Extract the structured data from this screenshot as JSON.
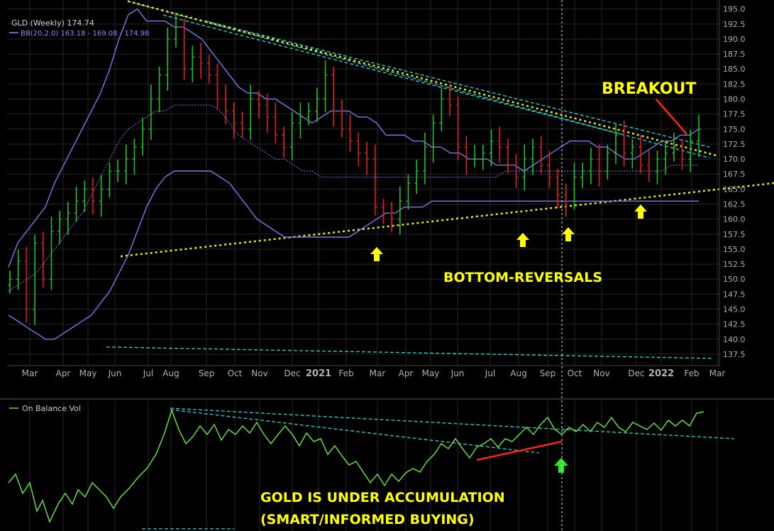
{
  "colors": {
    "background": "#000000",
    "grid": "#262626",
    "axis_text": "#b0b0b0",
    "up_bar": "#22c02a",
    "down_bar": "#e02020",
    "bollinger": "#7a7ae8",
    "bollinger_mid": "#6a6ad0",
    "trendline_cyan": "#2ad3d3",
    "trendline_yellow": "#e8e820",
    "annotation_yellow": "#ffff00",
    "obv_line": "#66dd44",
    "red_arrow": "#ff2020",
    "green_arrow": "#22ee22",
    "legend_gld": "#cfcfcf",
    "legend_bb": "#8a8aff",
    "legend_obv": "#cfcfcf"
  },
  "chart_data": [
    {
      "type": "ohlc",
      "legend": [
        "GLD (Weekly) 174.74",
        "BB(20,2.0) 163.18 - 169.08 - 174.98"
      ],
      "yaxis_ticks": [
        137.5,
        140.0,
        142.5,
        145.0,
        147.5,
        150.0,
        152.5,
        155.0,
        157.5,
        160.0,
        162.5,
        165.0,
        167.5,
        170.0,
        172.5,
        175.0,
        177.5,
        180.0,
        182.5,
        185.0,
        187.5,
        190.0,
        192.5,
        195.0
      ],
      "yaxis_tick_labels": [
        "137.5",
        "140.0",
        "142.5",
        "145.0",
        "147.5",
        "150.0",
        "152.5",
        "155.0",
        "157.5",
        "160.0",
        "162.5",
        "165.0",
        "167.5",
        "170.0",
        "172.5",
        "175.0",
        "177.5",
        "180.0",
        "182.5",
        "185.0",
        "187.5",
        "190.0",
        "192.5",
        "195.0"
      ],
      "ylim": [
        135.6,
        196.5
      ],
      "xaxis_labels": [
        "Mar",
        "Apr",
        "May",
        "Jun",
        "Jul",
        "Aug",
        "Sep",
        "Oct",
        "Nov",
        "Dec",
        "2021",
        "Feb",
        "Mar",
        "Apr",
        "May",
        "Jun",
        "Jul",
        "Aug",
        "Sep",
        "Oct",
        "Nov",
        "Dec",
        "2022",
        "Feb",
        "Mar"
      ],
      "weekly_close": [
        150,
        153,
        145,
        156,
        150,
        158,
        160,
        161,
        163,
        165,
        163,
        165,
        168,
        168,
        170,
        172,
        175,
        180,
        184,
        190,
        192,
        185,
        187,
        186,
        184,
        180,
        178,
        176,
        175,
        180,
        179,
        177,
        174,
        172,
        176,
        177,
        178,
        180,
        184,
        178,
        175,
        173,
        171,
        170,
        162,
        161,
        160,
        163,
        166,
        168,
        172,
        176,
        180,
        179,
        172,
        170,
        170,
        171,
        173,
        172,
        169,
        167,
        170,
        172,
        169,
        167,
        164,
        163,
        167,
        168,
        170,
        168,
        171,
        174,
        171,
        172,
        169,
        168,
        170,
        171,
        172,
        170,
        173,
        175
      ],
      "bollinger_upper": [
        152,
        156,
        158,
        160,
        162,
        166,
        169,
        172,
        175,
        178,
        181,
        185,
        190,
        194,
        195,
        193,
        193,
        193,
        192,
        192,
        191,
        190,
        188,
        186,
        184,
        182,
        181,
        181,
        180,
        180,
        179,
        178,
        177,
        176,
        177,
        178,
        178,
        178,
        177,
        177,
        176,
        174,
        174,
        174,
        173,
        173,
        172,
        172,
        171,
        171,
        170,
        170,
        170,
        169,
        169,
        169,
        168,
        169,
        170,
        171,
        172,
        173,
        173,
        173,
        172,
        172,
        171,
        170,
        170,
        171,
        172,
        173,
        173,
        174,
        174,
        175
      ],
      "bollinger_middle": [
        148,
        149,
        150,
        151,
        153,
        155,
        157,
        159,
        161,
        164,
        167,
        170,
        173,
        175,
        176,
        177,
        178,
        178,
        179,
        179,
        179,
        179,
        179,
        178,
        176,
        174,
        173,
        172,
        171,
        170,
        170,
        169,
        168,
        168,
        167,
        167,
        167,
        167,
        167,
        167,
        167,
        167,
        167,
        167,
        167,
        167,
        167,
        167,
        167,
        167,
        167,
        167,
        167,
        167,
        168,
        168,
        168,
        168,
        168,
        168,
        168,
        168,
        168,
        168,
        168,
        168,
        168,
        168,
        168,
        168,
        168,
        168,
        169,
        169,
        169,
        169
      ],
      "bollinger_lower": [
        144,
        143,
        142,
        141,
        140,
        140,
        141,
        142,
        143,
        144,
        146,
        148,
        151,
        154,
        158,
        162,
        165,
        167,
        168,
        168,
        168,
        168,
        168,
        167,
        166,
        164,
        162,
        160,
        159,
        158,
        157,
        157,
        157,
        157,
        157,
        157,
        157,
        157,
        158,
        159,
        160,
        161,
        161,
        162,
        162,
        162,
        163,
        163,
        163,
        163,
        163,
        163,
        163,
        163,
        163,
        163,
        163,
        163,
        163,
        163,
        163,
        163,
        163,
        163,
        163,
        163,
        163,
        163,
        163,
        163,
        163,
        163,
        163,
        163,
        163,
        163
      ],
      "annotations": [
        "BREAKOUT",
        "BOTTOM-REVERSALS"
      ]
    },
    {
      "type": "line",
      "legend": [
        "On Balance Vol"
      ],
      "annotations": [
        "GOLD IS UNDER ACCUMULATION",
        "(SMART/INFORMED BUYING)"
      ]
    }
  ]
}
